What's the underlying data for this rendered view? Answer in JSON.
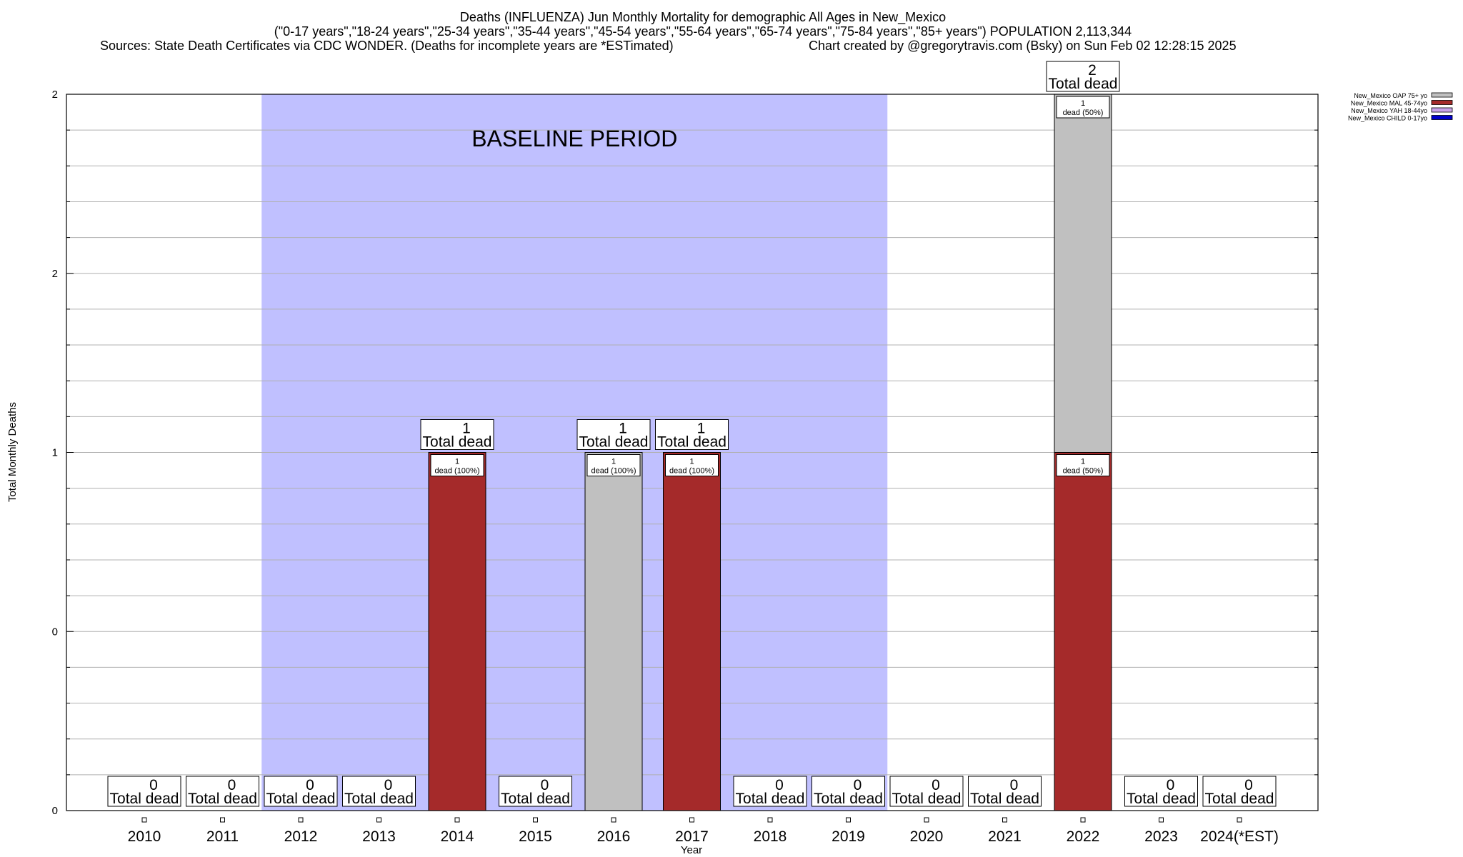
{
  "chart_data": {
    "type": "bar",
    "stacked": true,
    "title": "Deaths (INFLUENZA) Jun Monthly Mortality for demographic All Ages in New_Mexico",
    "subtitle": "(\"0-17 years\",\"18-24 years\",\"25-34 years\",\"35-44 years\",\"45-54 years\",\"55-64 years\",\"65-74 years\",\"75-84 years\",\"85+ years\") POPULATION 2,113,344",
    "sources": "Sources: State Death Certificates via CDC WONDER. (Deaths for incomplete years are *ESTimated)",
    "credit": "Chart created by @gregorytravis.com (Bsky) on Sun Feb 02 12:28:15 2025",
    "xlabel": "Year",
    "ylabel": "Total Monthly Deaths",
    "ylim": [
      0,
      2
    ],
    "y_ticks": [
      {
        "value": 0,
        "label": "0"
      },
      {
        "value": 0.5,
        "label": "0"
      },
      {
        "value": 1,
        "label": "1"
      },
      {
        "value": 1.5,
        "label": "2"
      },
      {
        "value": 2,
        "label": "2"
      }
    ],
    "categories": [
      "2010",
      "2011",
      "2012",
      "2013",
      "2014",
      "2015",
      "2016",
      "2017",
      "2018",
      "2019",
      "2020",
      "2021",
      "2022",
      "2023",
      "2024(*EST)"
    ],
    "series": [
      {
        "name": "New_Mexico CHILD 0-17yo",
        "color": "#0000cc",
        "values": [
          0,
          0,
          0,
          0,
          0,
          0,
          0,
          0,
          0,
          0,
          0,
          0,
          0,
          0,
          0
        ]
      },
      {
        "name": "New_Mexico YAH 18-44yo",
        "color": "#c8a2e8",
        "values": [
          0,
          0,
          0,
          0,
          0,
          0,
          0,
          0,
          0,
          0,
          0,
          0,
          0,
          0,
          0
        ]
      },
      {
        "name": "New_Mexico MAL 45-74yo",
        "color": "#a52a2a",
        "values": [
          0,
          0,
          0,
          0,
          1,
          0,
          0,
          1,
          0,
          0,
          0,
          0,
          1,
          0,
          0
        ]
      },
      {
        "name": "New_Mexico OAP 75+ yo",
        "color": "#c0c0c0",
        "values": [
          0,
          0,
          0,
          0,
          0,
          0,
          1,
          0,
          0,
          0,
          0,
          0,
          1,
          0,
          0
        ]
      }
    ],
    "totals": [
      0,
      0,
      0,
      0,
      1,
      0,
      1,
      1,
      0,
      0,
      0,
      0,
      2,
      0,
      0
    ],
    "total_label": "Total dead",
    "segment_labels": [
      {
        "category": "2014",
        "series": "New_Mexico MAL 45-74yo",
        "count": "1",
        "text": "dead (100%)"
      },
      {
        "category": "2016",
        "series": "New_Mexico OAP 75+ yo",
        "count": "1",
        "text": "dead (100%)"
      },
      {
        "category": "2017",
        "series": "New_Mexico MAL 45-74yo",
        "count": "1",
        "text": "dead (100%)"
      },
      {
        "category": "2022",
        "series": "New_Mexico MAL 45-74yo",
        "count": "1",
        "text": "dead (50%)"
      },
      {
        "category": "2022",
        "series": "New_Mexico OAP 75+ yo",
        "count": "1",
        "text": "dead (50%)"
      }
    ],
    "baseline": {
      "label": "BASELINE PERIOD",
      "from": "2012",
      "to": "2019",
      "color": "#c0c0ff"
    },
    "grid": true,
    "legend_position": "top-right",
    "legend_order": [
      "New_Mexico OAP 75+ yo",
      "New_Mexico MAL 45-74yo",
      "New_Mexico YAH 18-44yo",
      "New_Mexico CHILD 0-17yo"
    ]
  }
}
